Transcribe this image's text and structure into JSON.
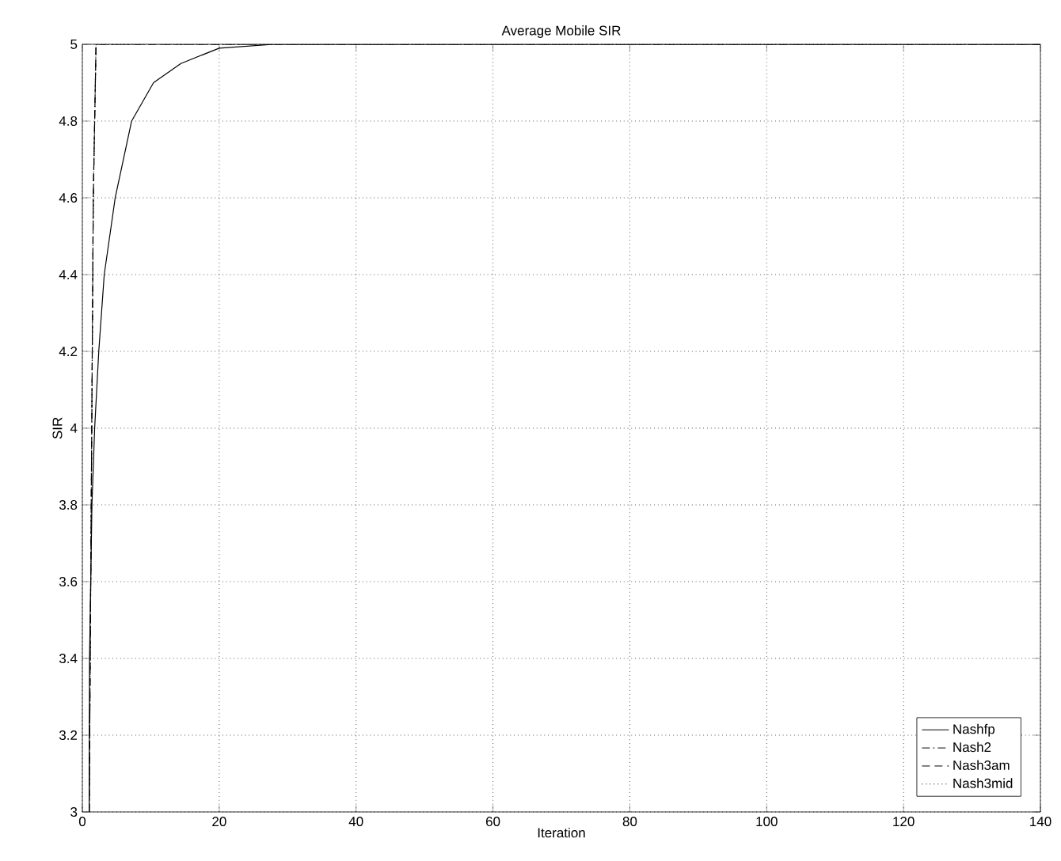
{
  "chart_data": {
    "type": "line",
    "title": "Average Mobile SIR",
    "xlabel": "Iteration",
    "ylabel": "SIR",
    "xlim": [
      0,
      140
    ],
    "ylim": [
      3,
      5
    ],
    "xticks": [
      0,
      20,
      40,
      60,
      80,
      100,
      120,
      140
    ],
    "yticks": [
      3,
      3.2,
      3.4,
      3.6,
      3.8,
      4,
      4.2,
      4.4,
      4.6,
      4.8,
      5
    ],
    "grid": true,
    "legend": "bottom right",
    "series": [
      {
        "name": "Nashfp",
        "color": "#000000",
        "line_style": "solid",
        "x": [
          1,
          1.05,
          1.4,
          1.8,
          2.4,
          3.2,
          4.8,
          7.2,
          10.4,
          14.4,
          20,
          28,
          140
        ],
        "values": [
          3,
          3.4,
          3.8,
          4.0,
          4.2,
          4.4,
          4.6,
          4.8,
          4.9,
          4.95,
          4.99,
          5,
          5
        ]
      },
      {
        "name": "Nash2",
        "color": "#000000",
        "line_style": "dashdot",
        "x": [
          1,
          1.6,
          2,
          140
        ],
        "values": [
          3,
          4.6,
          5,
          5
        ]
      },
      {
        "name": "Nash3am",
        "color": "#000000",
        "line_style": "dashed",
        "x": [
          1,
          1.6,
          2,
          140
        ],
        "values": [
          3,
          4.6,
          5,
          5
        ]
      },
      {
        "name": "Nash3mid",
        "color": "#000000",
        "line_style": "dotted",
        "x": [
          1,
          1.6,
          2,
          140
        ],
        "values": [
          3,
          4.6,
          5,
          5
        ]
      }
    ]
  }
}
